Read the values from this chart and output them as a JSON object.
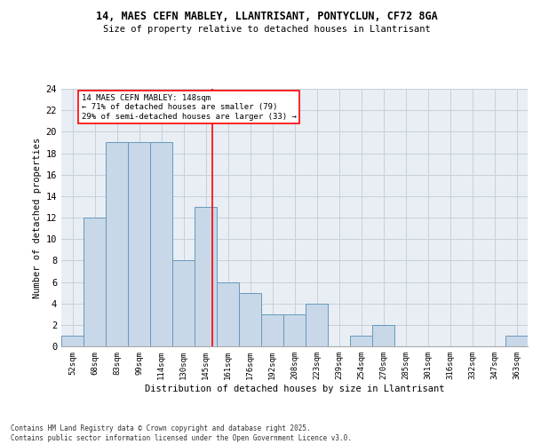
{
  "title_line1": "14, MAES CEFN MABLEY, LLANTRISANT, PONTYCLUN, CF72 8GA",
  "title_line2": "Size of property relative to detached houses in Llantrisant",
  "xlabel": "Distribution of detached houses by size in Llantrisant",
  "ylabel": "Number of detached properties",
  "categories": [
    "52sqm",
    "68sqm",
    "83sqm",
    "99sqm",
    "114sqm",
    "130sqm",
    "145sqm",
    "161sqm",
    "176sqm",
    "192sqm",
    "208sqm",
    "223sqm",
    "239sqm",
    "254sqm",
    "270sqm",
    "285sqm",
    "301sqm",
    "316sqm",
    "332sqm",
    "347sqm",
    "363sqm"
  ],
  "values": [
    1,
    12,
    19,
    19,
    19,
    8,
    13,
    6,
    5,
    3,
    3,
    4,
    0,
    1,
    2,
    0,
    0,
    0,
    0,
    0,
    1
  ],
  "bar_color": "#c8d8e8",
  "bar_edge_color": "#6699bb",
  "grid_color": "#c8d0da",
  "bg_color": "#e8eef4",
  "annotation_text": "14 MAES CEFN MABLEY: 148sqm\n← 71% of detached houses are smaller (79)\n29% of semi-detached houses are larger (33) →",
  "red_line_x": 6.3,
  "footer_text": "Contains HM Land Registry data © Crown copyright and database right 2025.\nContains public sector information licensed under the Open Government Licence v3.0.",
  "ylim": [
    0,
    24
  ],
  "yticks": [
    0,
    2,
    4,
    6,
    8,
    10,
    12,
    14,
    16,
    18,
    20,
    22,
    24
  ]
}
